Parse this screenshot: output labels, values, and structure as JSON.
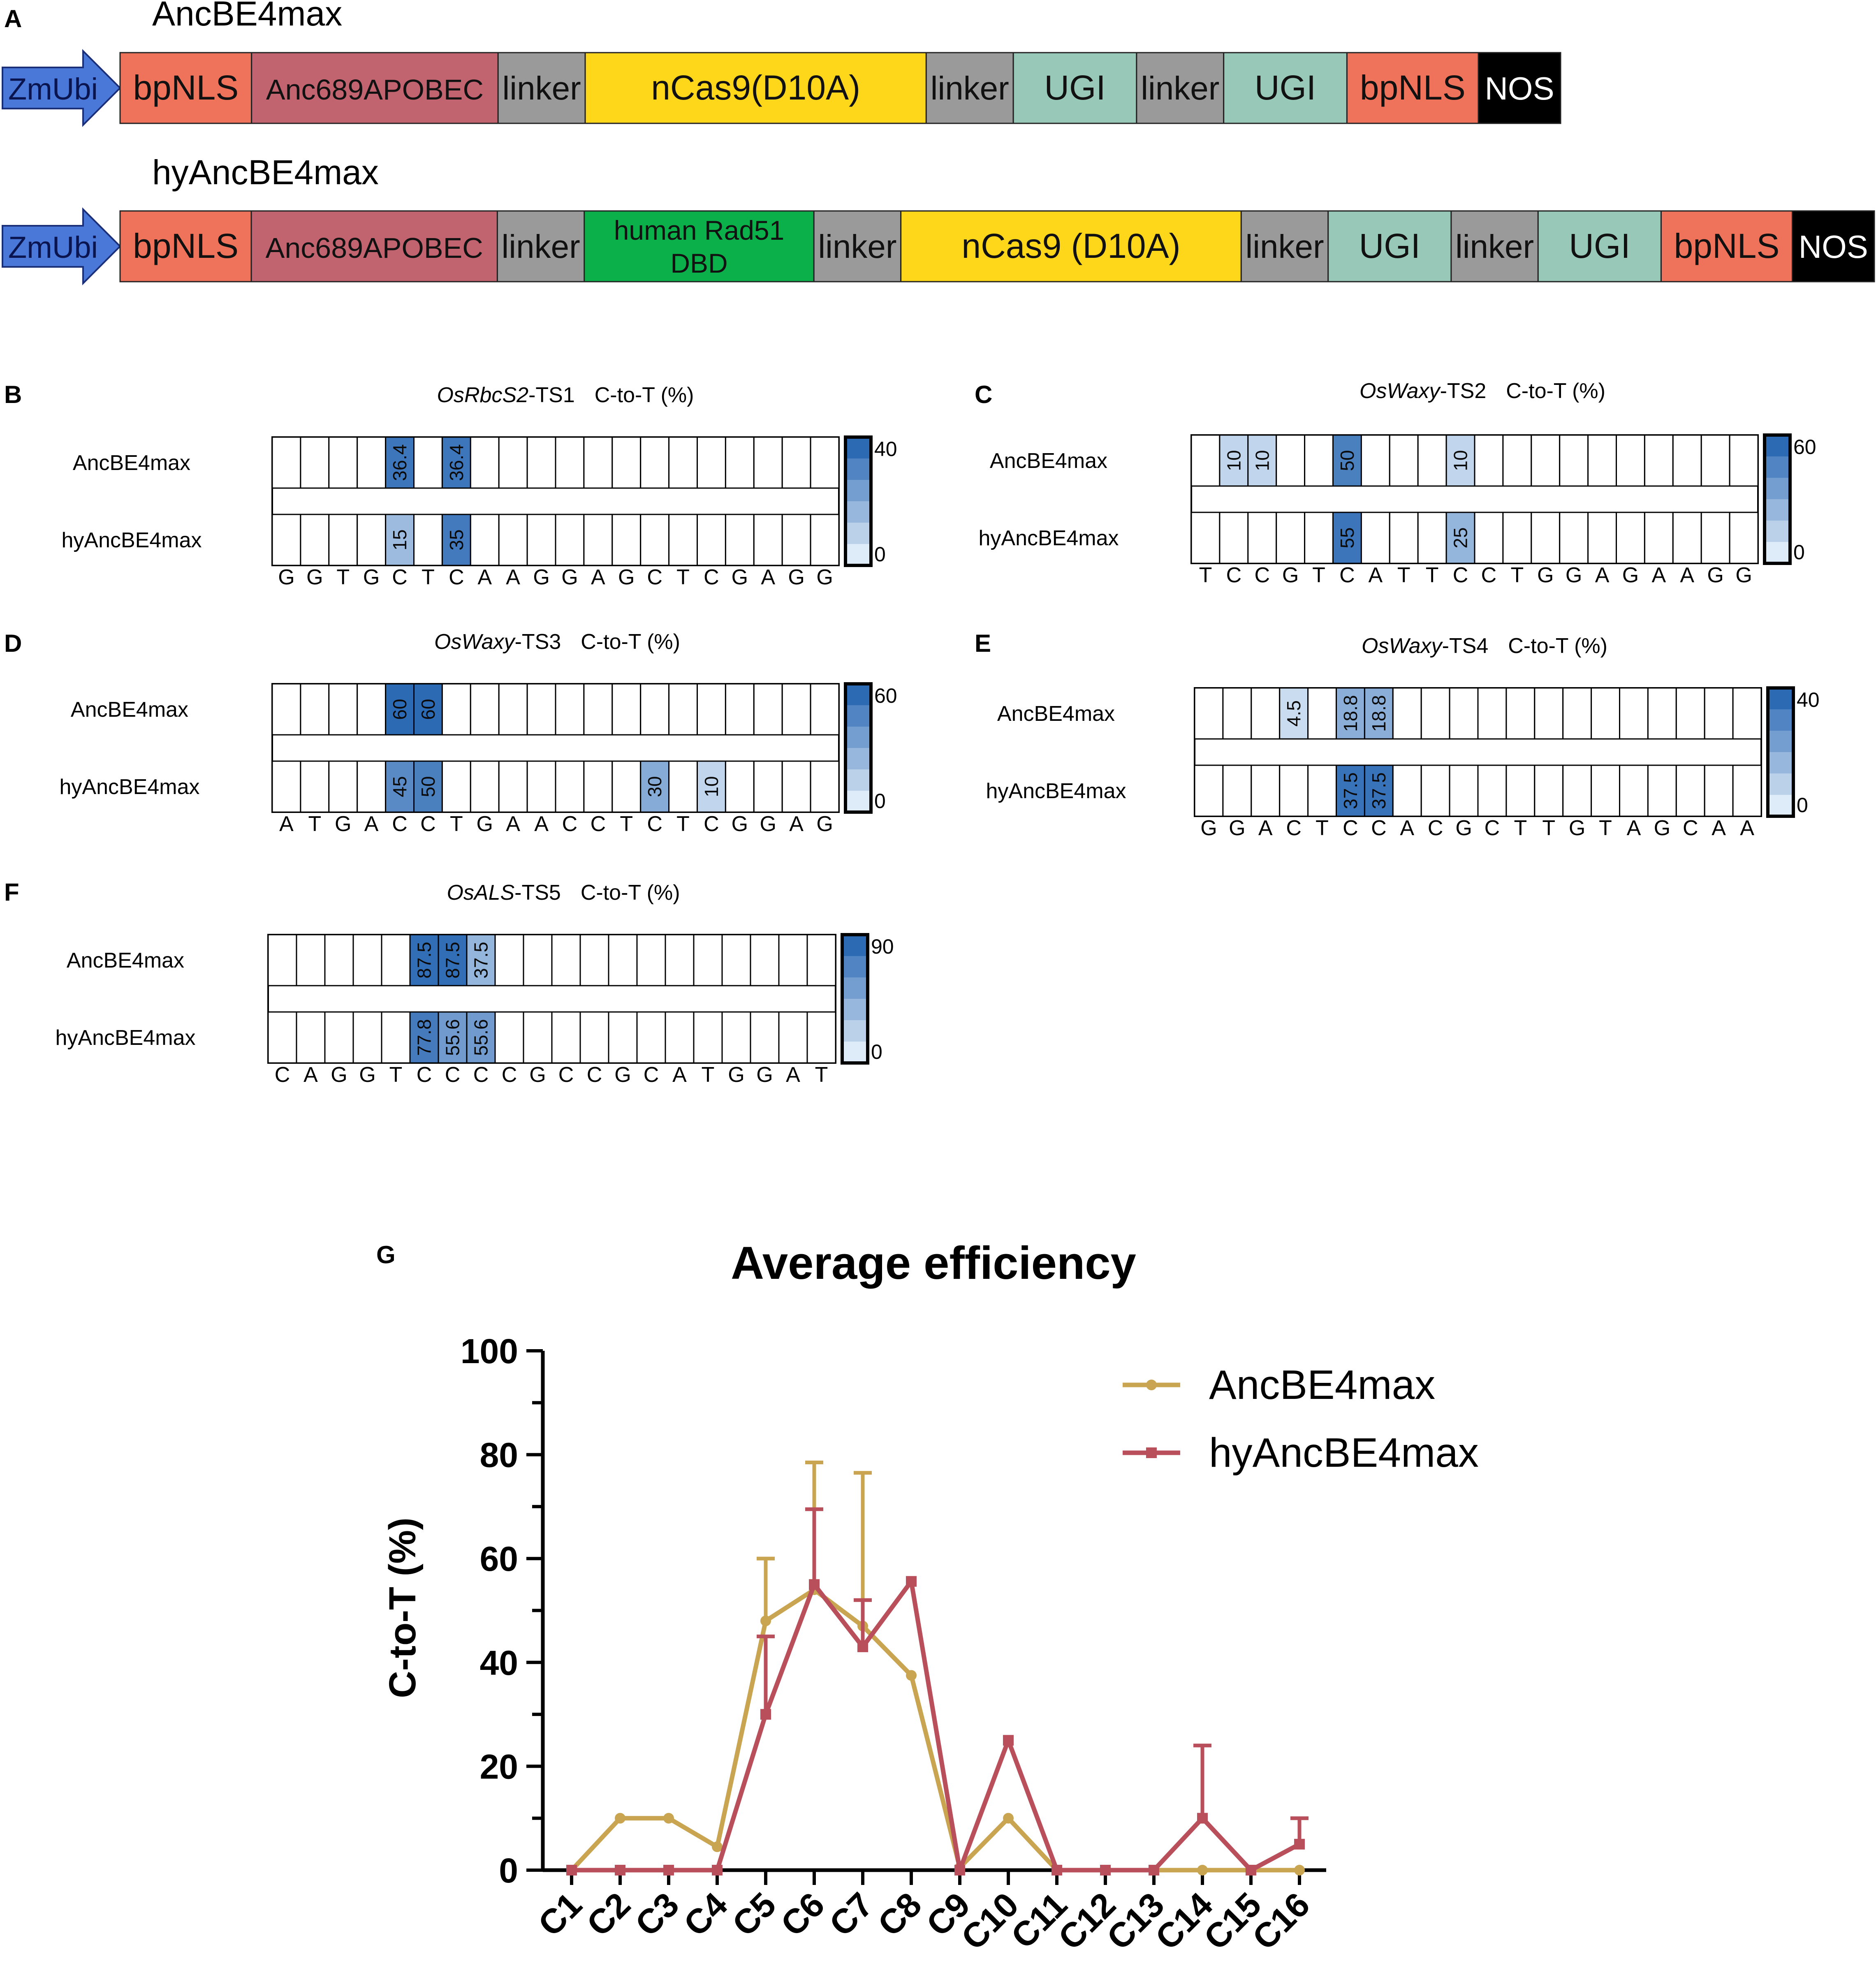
{
  "panel_a": {
    "letter": "A",
    "constructs": [
      {
        "name": "AncBE4max",
        "segments": [
          {
            "label": "ZmUbi",
            "kind": "promoter",
            "color": "#4a78d8"
          },
          {
            "label": "bpNLS",
            "kind": "nls",
            "color": "#ef735a"
          },
          {
            "label": "Anc689APOBEC",
            "kind": "apobec",
            "color": "#c2646f"
          },
          {
            "label": "linker",
            "kind": "linker",
            "color": "#9a9a9a"
          },
          {
            "label": "nCas9(D10A)",
            "kind": "cas9",
            "color": "#ffd71a"
          },
          {
            "label": "linker",
            "kind": "linker",
            "color": "#9a9a9a"
          },
          {
            "label": "UGI",
            "kind": "ugi",
            "color": "#98c8b8"
          },
          {
            "label": "linker",
            "kind": "linker",
            "color": "#9a9a9a"
          },
          {
            "label": "UGI",
            "kind": "ugi",
            "color": "#98c8b8"
          },
          {
            "label": "bpNLS",
            "kind": "nls",
            "color": "#ef735a"
          },
          {
            "label": "NOS",
            "kind": "nos",
            "color": "#000000"
          }
        ]
      },
      {
        "name": "hyAncBE4max",
        "segments": [
          {
            "label": "ZmUbi",
            "kind": "promoter",
            "color": "#4a78d8"
          },
          {
            "label": "bpNLS",
            "kind": "nls",
            "color": "#ef735a"
          },
          {
            "label": "Anc689APOBEC",
            "kind": "apobec",
            "color": "#c2646f"
          },
          {
            "label": "linker",
            "kind": "linker",
            "color": "#9a9a9a"
          },
          {
            "label": "human Rad51 DBD",
            "kind": "rad51",
            "color": "#0cb04a"
          },
          {
            "label": "linker",
            "kind": "linker",
            "color": "#9a9a9a"
          },
          {
            "label": "nCas9 (D10A)",
            "kind": "cas9",
            "color": "#ffd71a"
          },
          {
            "label": "linker",
            "kind": "linker",
            "color": "#9a9a9a"
          },
          {
            "label": "UGI",
            "kind": "ugi",
            "color": "#98c8b8"
          },
          {
            "label": "linker",
            "kind": "linker",
            "color": "#9a9a9a"
          },
          {
            "label": "UGI",
            "kind": "ugi",
            "color": "#98c8b8"
          },
          {
            "label": "bpNLS",
            "kind": "nls",
            "color": "#ef735a"
          },
          {
            "label": "NOS",
            "kind": "nos",
            "color": "#000000"
          }
        ]
      }
    ]
  },
  "chart_data": [
    {
      "type": "heatmap",
      "panel": "B",
      "gene": "OsRbcS2",
      "target": "-TS1",
      "metric": "C-to-T (%)",
      "rows": [
        "AncBE4max",
        "hyAncBE4max"
      ],
      "sequence": [
        "G",
        "G",
        "T",
        "G",
        "C",
        "T",
        "C",
        "A",
        "A",
        "G",
        "G",
        "A",
        "G",
        "C",
        "T",
        "C",
        "G",
        "A",
        "G",
        "G"
      ],
      "values": {
        "AncBE4max": [
          null,
          null,
          null,
          null,
          "36.4",
          null,
          "36.4",
          null,
          null,
          null,
          null,
          null,
          null,
          null,
          null,
          null,
          null,
          null,
          null,
          null
        ],
        "hyAncBE4max": [
          null,
          null,
          null,
          null,
          "15",
          null,
          "35",
          null,
          null,
          null,
          null,
          null,
          null,
          null,
          null,
          null,
          null,
          null,
          null,
          null
        ]
      },
      "scale_max": "40",
      "scale_min": "0"
    },
    {
      "type": "heatmap",
      "panel": "C",
      "gene": "OsWaxy",
      "target": "-TS2",
      "metric": "C-to-T (%)",
      "rows": [
        "AncBE4max",
        "hyAncBE4max"
      ],
      "sequence": [
        "T",
        "C",
        "C",
        "G",
        "T",
        "C",
        "A",
        "T",
        "T",
        "C",
        "C",
        "T",
        "G",
        "G",
        "A",
        "G",
        "A",
        "A",
        "G",
        "G"
      ],
      "values": {
        "AncBE4max": [
          null,
          "10",
          "10",
          null,
          null,
          "50",
          null,
          null,
          null,
          "10",
          null,
          null,
          null,
          null,
          null,
          null,
          null,
          null,
          null,
          null
        ],
        "hyAncBE4max": [
          null,
          null,
          null,
          null,
          null,
          "55",
          null,
          null,
          null,
          "25",
          null,
          null,
          null,
          null,
          null,
          null,
          null,
          null,
          null,
          null
        ]
      },
      "scale_max": "60",
      "scale_min": "0"
    },
    {
      "type": "heatmap",
      "panel": "D",
      "gene": "OsWaxy",
      "target": "-TS3",
      "metric": "C-to-T (%)",
      "rows": [
        "AncBE4max",
        "hyAncBE4max"
      ],
      "sequence": [
        "A",
        "T",
        "G",
        "A",
        "C",
        "C",
        "T",
        "G",
        "A",
        "A",
        "C",
        "C",
        "T",
        "C",
        "T",
        "C",
        "G",
        "G",
        "A",
        "G"
      ],
      "values": {
        "AncBE4max": [
          null,
          null,
          null,
          null,
          "60",
          "60",
          null,
          null,
          null,
          null,
          null,
          null,
          null,
          null,
          null,
          null,
          null,
          null,
          null,
          null
        ],
        "hyAncBE4max": [
          null,
          null,
          null,
          null,
          "45",
          "50",
          null,
          null,
          null,
          null,
          null,
          null,
          null,
          "30",
          null,
          "10",
          null,
          null,
          null,
          null
        ]
      },
      "scale_max": "60",
      "scale_min": "0"
    },
    {
      "type": "heatmap",
      "panel": "E",
      "gene": "OsWaxy",
      "target": "-TS4",
      "metric": "C-to-T (%)",
      "rows": [
        "AncBE4max",
        "hyAncBE4max"
      ],
      "sequence": [
        "G",
        "G",
        "A",
        "C",
        "T",
        "C",
        "C",
        "A",
        "C",
        "G",
        "C",
        "T",
        "T",
        "G",
        "T",
        "A",
        "G",
        "C",
        "A",
        "A"
      ],
      "values": {
        "AncBE4max": [
          null,
          null,
          null,
          "4.5",
          null,
          "18.8",
          "18.8",
          null,
          null,
          null,
          null,
          null,
          null,
          null,
          null,
          null,
          null,
          null,
          null,
          null
        ],
        "hyAncBE4max": [
          null,
          null,
          null,
          null,
          null,
          "37.5",
          "37.5",
          null,
          null,
          null,
          null,
          null,
          null,
          null,
          null,
          null,
          null,
          null,
          null,
          null
        ]
      },
      "scale_max": "40",
      "scale_min": "0"
    },
    {
      "type": "heatmap",
      "panel": "F",
      "gene": "OsALS",
      "target": "-TS5",
      "metric": "C-to-T (%)",
      "rows": [
        "AncBE4max",
        "hyAncBE4max"
      ],
      "sequence": [
        "C",
        "A",
        "G",
        "G",
        "T",
        "C",
        "C",
        "C",
        "C",
        "G",
        "C",
        "C",
        "G",
        "C",
        "A",
        "T",
        "G",
        "G",
        "A",
        "T"
      ],
      "values": {
        "AncBE4max": [
          null,
          null,
          null,
          null,
          null,
          "87.5",
          "87.5",
          "37.5",
          null,
          null,
          null,
          null,
          null,
          null,
          null,
          null,
          null,
          null,
          null,
          null
        ],
        "hyAncBE4max": [
          null,
          null,
          null,
          null,
          null,
          "77.8",
          "55.6",
          "55.6",
          null,
          null,
          null,
          null,
          null,
          null,
          null,
          null,
          null,
          null,
          null,
          null
        ]
      },
      "scale_max": "90",
      "scale_min": "0"
    },
    {
      "type": "line",
      "panel": "G",
      "title": "Average efficiency",
      "xlabel": "",
      "ylabel": "C-to-T (%)",
      "categories": [
        "C1",
        "C2",
        "C3",
        "C4",
        "C5",
        "C6",
        "C7",
        "C8",
        "C9",
        "C10",
        "C11",
        "C12",
        "C13",
        "C14",
        "C15",
        "C16"
      ],
      "ylim": [
        0,
        100
      ],
      "yticks": [
        "0",
        "20",
        "40",
        "60",
        "80",
        "100"
      ],
      "series": [
        {
          "name": "AncBE4max",
          "color": "#c9a552",
          "marker": "circle",
          "values": [
            0,
            10,
            10,
            4.5,
            48,
            54,
            47,
            37.5,
            0.5,
            10,
            0,
            0,
            0,
            0,
            0,
            0
          ],
          "errors": [
            0,
            0,
            0,
            0,
            12,
            24.5,
            29.5,
            0,
            0,
            0,
            0,
            0,
            0,
            0,
            0,
            0
          ]
        },
        {
          "name": "hyAncBE4max",
          "color": "#b84f5b",
          "marker": "square",
          "values": [
            0,
            0,
            0,
            0,
            30,
            55,
            43,
            55.6,
            0,
            25,
            0,
            0,
            0,
            10,
            0,
            5
          ],
          "errors": [
            0,
            0,
            0,
            0,
            15,
            14.5,
            9,
            0,
            0,
            0,
            0,
            0,
            0,
            14,
            0,
            5
          ]
        }
      ]
    }
  ]
}
